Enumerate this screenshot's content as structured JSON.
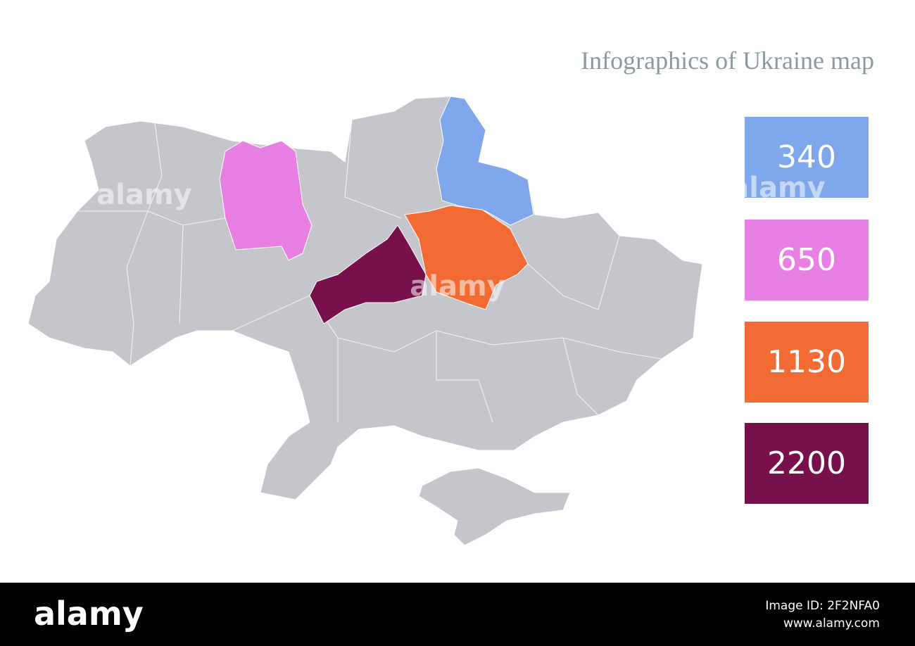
{
  "title": "Infographics of Ukraine map",
  "legend": [
    {
      "value": 340,
      "color": "#7fa7ec"
    },
    {
      "value": 650,
      "color": "#e880e3"
    },
    {
      "value": 1130,
      "color": "#f26b34"
    },
    {
      "value": 2200,
      "color": "#78104e"
    }
  ],
  "watermark": "alamy",
  "footer": {
    "logo": "alamy",
    "image_id": "Image ID: 2F2NFA0",
    "url": "www.alamy.com"
  }
}
